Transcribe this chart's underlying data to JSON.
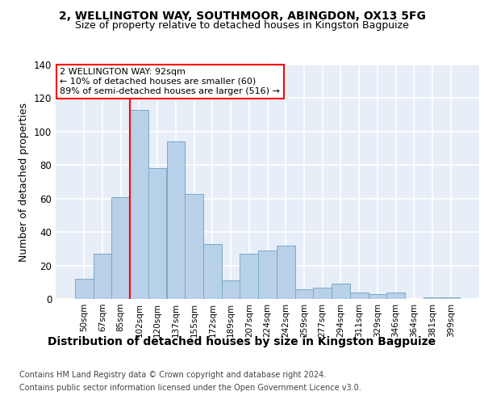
{
  "title1": "2, WELLINGTON WAY, SOUTHMOOR, ABINGDON, OX13 5FG",
  "title2": "Size of property relative to detached houses in Kingston Bagpuize",
  "xlabel": "Distribution of detached houses by size in Kingston Bagpuize",
  "ylabel": "Number of detached properties",
  "footer1": "Contains HM Land Registry data © Crown copyright and database right 2024.",
  "footer2": "Contains public sector information licensed under the Open Government Licence v3.0.",
  "bin_labels": [
    "50sqm",
    "67sqm",
    "85sqm",
    "102sqm",
    "120sqm",
    "137sqm",
    "155sqm",
    "172sqm",
    "189sqm",
    "207sqm",
    "224sqm",
    "242sqm",
    "259sqm",
    "277sqm",
    "294sqm",
    "311sqm",
    "329sqm",
    "346sqm",
    "364sqm",
    "381sqm",
    "399sqm"
  ],
  "bar_values": [
    12,
    27,
    61,
    113,
    78,
    94,
    63,
    33,
    11,
    27,
    29,
    32,
    6,
    7,
    9,
    4,
    3,
    4,
    0,
    1,
    1
  ],
  "bar_color": "#b8d0e8",
  "bar_edge_color": "#7aaac8",
  "vline_x": 2.5,
  "vline_color": "red",
  "annotation_text": "2 WELLINGTON WAY: 92sqm\n← 10% of detached houses are smaller (60)\n89% of semi-detached houses are larger (516) →",
  "annotation_box_color": "white",
  "annotation_box_edge": "red",
  "ylim": [
    0,
    140
  ],
  "yticks": [
    0,
    20,
    40,
    60,
    80,
    100,
    120,
    140
  ],
  "background_color": "#e8eef8",
  "grid_color": "white",
  "title1_fontsize": 10,
  "title2_fontsize": 9,
  "xlabel_fontsize": 10,
  "ylabel_fontsize": 9,
  "footer_fontsize": 7,
  "annot_fontsize": 8
}
